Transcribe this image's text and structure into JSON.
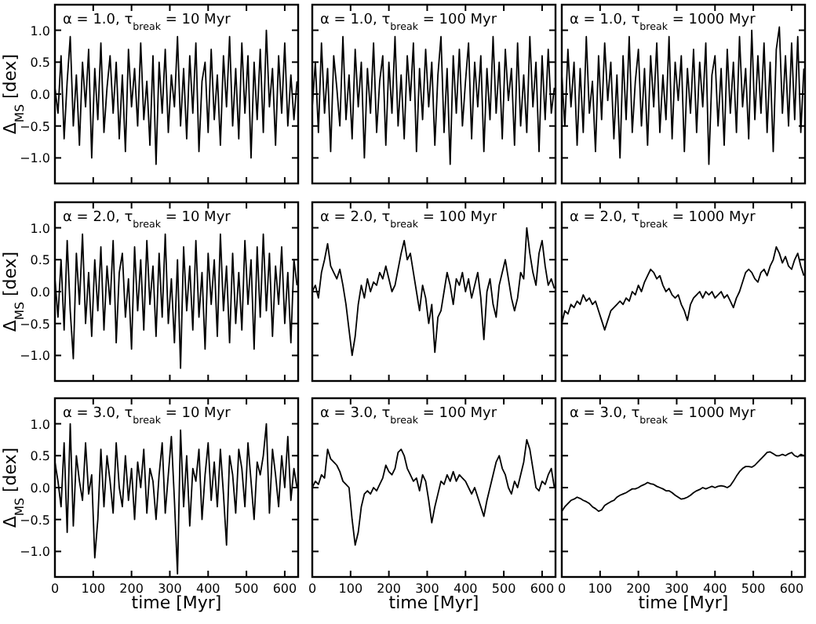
{
  "chart_data": [
    {
      "type": "line",
      "title": "α = 1.0,  τ$_{break}$ = 10 Myr",
      "ylabel": "Δ$_{MS}$  [dex]",
      "tick_labels": "y",
      "xlim": [
        0,
        635
      ],
      "ylim": [
        -1.4,
        1.4
      ],
      "xticks": [
        0,
        100,
        200,
        300,
        400,
        500,
        600
      ],
      "yticks": [
        {
          "value": -1,
          "label": "−1.0"
        },
        {
          "value": -0.5,
          "label": "−0.5"
        },
        {
          "value": 0,
          "label": "0.0"
        },
        {
          "value": 0.5,
          "label": "0.5"
        },
        {
          "value": 1,
          "label": "1.0"
        }
      ],
      "x": [
        0,
        8,
        16,
        24,
        32,
        40,
        48,
        56,
        64,
        72,
        80,
        88,
        96,
        104,
        112,
        120,
        128,
        136,
        144,
        152,
        160,
        168,
        176,
        184,
        192,
        200,
        208,
        216,
        224,
        232,
        240,
        248,
        256,
        264,
        272,
        280,
        288,
        296,
        304,
        312,
        320,
        328,
        336,
        344,
        352,
        360,
        368,
        376,
        384,
        392,
        400,
        408,
        416,
        424,
        432,
        440,
        448,
        456,
        464,
        472,
        480,
        488,
        496,
        504,
        512,
        520,
        528,
        536,
        544,
        552,
        560,
        568,
        576,
        584,
        592,
        600,
        608,
        616,
        624,
        632
      ],
      "series": [
        {
          "color": "#000000",
          "values": [
            0.1,
            -0.3,
            0.6,
            -0.7,
            0.2,
            0.9,
            -0.5,
            0.3,
            -0.8,
            0.5,
            -0.2,
            0.7,
            -1.0,
            0.4,
            -0.4,
            0.8,
            -0.6,
            0.1,
            0.6,
            -0.3,
            0.5,
            -0.7,
            0.3,
            -0.9,
            0.7,
            -0.2,
            0.4,
            -0.5,
            0.8,
            -0.4,
            0.2,
            -0.8,
            0.6,
            -1.1,
            0.5,
            -0.3,
            0.7,
            -0.6,
            0.3,
            -0.2,
            0.9,
            -0.5,
            0.4,
            -0.7,
            0.6,
            -0.3,
            0.8,
            -0.9,
            0.2,
            0.5,
            -0.6,
            0.7,
            -0.4,
            0.3,
            -0.8,
            0.6,
            -0.2,
            0.9,
            -0.5,
            0.4,
            -0.7,
            0.8,
            -0.3,
            0.6,
            -1.0,
            0.5,
            -0.4,
            0.7,
            -0.6,
            1.0,
            -0.2,
            0.4,
            -0.8,
            0.6,
            -0.3,
            0.8,
            -0.5,
            0.3,
            -0.4,
            0.2
          ]
        }
      ]
    },
    {
      "type": "line",
      "title": "α = 1.0,  τ$_{break}$ = 100 Myr",
      "tick_labels": false,
      "xlim": [
        0,
        635
      ],
      "ylim": [
        -1.4,
        1.4
      ],
      "xticks": [
        {
          "value": 0,
          "label": null
        },
        {
          "value": 100,
          "label": null
        },
        {
          "value": 200,
          "label": null
        },
        {
          "value": 300,
          "label": null
        },
        {
          "value": 400,
          "label": null
        },
        {
          "value": 500,
          "label": null
        },
        {
          "value": 600,
          "label": null
        }
      ],
      "yticks": [
        {
          "value": -1,
          "label": null
        },
        {
          "value": -0.5,
          "label": null
        },
        {
          "value": 0,
          "label": null
        },
        {
          "value": 0.5,
          "label": null
        },
        {
          "value": 1,
          "label": null
        }
      ],
      "x": [
        0,
        8,
        16,
        24,
        32,
        40,
        48,
        56,
        64,
        72,
        80,
        88,
        96,
        104,
        112,
        120,
        128,
        136,
        144,
        152,
        160,
        168,
        176,
        184,
        192,
        200,
        208,
        216,
        224,
        232,
        240,
        248,
        256,
        264,
        272,
        280,
        288,
        296,
        304,
        312,
        320,
        328,
        336,
        344,
        352,
        360,
        368,
        376,
        384,
        392,
        400,
        408,
        416,
        424,
        432,
        440,
        448,
        456,
        464,
        472,
        480,
        488,
        496,
        504,
        512,
        520,
        528,
        536,
        544,
        552,
        560,
        568,
        576,
        584,
        592,
        600,
        608,
        616,
        624,
        632
      ],
      "series": [
        {
          "color": "#000000",
          "values": [
            -0.2,
            0.5,
            -0.6,
            0.8,
            -0.3,
            0.4,
            -0.9,
            0.6,
            0.1,
            -0.5,
            0.9,
            -0.4,
            0.3,
            -0.7,
            0.7,
            -0.2,
            0.5,
            -1.0,
            0.4,
            -0.3,
            0.8,
            -0.6,
            0.2,
            0.6,
            -0.8,
            0.5,
            -0.3,
            0.9,
            -0.5,
            0.3,
            -0.7,
            0.6,
            -0.1,
            0.8,
            -0.9,
            0.4,
            -0.4,
            0.7,
            -0.2,
            0.5,
            -0.8,
            0.3,
            0.9,
            -0.6,
            0.4,
            -1.1,
            0.6,
            -0.3,
            0.7,
            -0.5,
            0.2,
            0.8,
            -0.7,
            0.5,
            -0.2,
            0.6,
            -0.9,
            0.4,
            -0.4,
            0.9,
            -0.3,
            0.5,
            -0.7,
            0.7,
            -0.1,
            0.4,
            -0.8,
            0.8,
            -0.5,
            0.3,
            -0.6,
            0.9,
            -0.2,
            0.5,
            -0.9,
            0.6,
            -0.4,
            0.7,
            -0.3,
            0.1
          ]
        }
      ]
    },
    {
      "type": "line",
      "title": "α = 1.0,  τ$_{break}$ = 1000 Myr",
      "tick_labels": false,
      "xlim": [
        0,
        635
      ],
      "ylim": [
        -1.4,
        1.4
      ],
      "xticks": [
        {
          "value": 0,
          "label": null
        },
        {
          "value": 100,
          "label": null
        },
        {
          "value": 200,
          "label": null
        },
        {
          "value": 300,
          "label": null
        },
        {
          "value": 400,
          "label": null
        },
        {
          "value": 500,
          "label": null
        },
        {
          "value": 600,
          "label": null
        }
      ],
      "yticks": [
        {
          "value": -1,
          "label": null
        },
        {
          "value": -0.5,
          "label": null
        },
        {
          "value": 0,
          "label": null
        },
        {
          "value": 0.5,
          "label": null
        },
        {
          "value": 1,
          "label": null
        }
      ],
      "x": [
        0,
        8,
        16,
        24,
        32,
        40,
        48,
        56,
        64,
        72,
        80,
        88,
        96,
        104,
        112,
        120,
        128,
        136,
        144,
        152,
        160,
        168,
        176,
        184,
        192,
        200,
        208,
        216,
        224,
        232,
        240,
        248,
        256,
        264,
        272,
        280,
        288,
        296,
        304,
        312,
        320,
        328,
        336,
        344,
        352,
        360,
        368,
        376,
        384,
        392,
        400,
        408,
        416,
        424,
        432,
        440,
        448,
        456,
        464,
        472,
        480,
        488,
        496,
        504,
        512,
        520,
        528,
        536,
        544,
        552,
        560,
        568,
        576,
        584,
        592,
        600,
        608,
        616,
        624,
        632
      ],
      "series": [
        {
          "color": "#000000",
          "values": [
            0.3,
            -0.5,
            0.7,
            -0.2,
            0.5,
            -0.8,
            0.4,
            -0.6,
            0.9,
            -0.3,
            0.2,
            -0.9,
            0.6,
            -0.4,
            0.8,
            -0.1,
            0.5,
            -0.7,
            0.3,
            -1.0,
            0.6,
            -0.4,
            0.9,
            -0.6,
            0.2,
            0.7,
            -0.5,
            0.4,
            -0.8,
            0.6,
            -0.2,
            0.8,
            -0.6,
            0.3,
            -0.4,
            0.9,
            -0.7,
            0.5,
            -0.1,
            0.6,
            -0.9,
            0.4,
            -0.3,
            0.7,
            -0.6,
            0.5,
            -0.2,
            0.8,
            -1.1,
            0.3,
            0.6,
            -0.5,
            0.4,
            -0.8,
            0.7,
            -0.3,
            0.5,
            -0.6,
            0.9,
            -0.2,
            0.4,
            -0.7,
            1.0,
            -0.4,
            0.6,
            -0.3,
            0.8,
            -0.6,
            0.5,
            -0.9,
            0.7,
            1.05,
            -0.3,
            0.6,
            -0.5,
            0.8,
            -0.4,
            0.9,
            -0.6,
            0.4
          ]
        }
      ]
    },
    {
      "type": "line",
      "title": "α = 2.0,  τ$_{break}$ = 10 Myr",
      "ylabel": "Δ$_{MS}$  [dex]",
      "tick_labels": "y",
      "xlim": [
        0,
        635
      ],
      "ylim": [
        -1.4,
        1.4
      ],
      "xticks": [
        0,
        100,
        200,
        300,
        400,
        500,
        600
      ],
      "yticks": [
        {
          "value": -1,
          "label": "−1.0"
        },
        {
          "value": -0.5,
          "label": "−0.5"
        },
        {
          "value": 0,
          "label": "0.0"
        },
        {
          "value": 0.5,
          "label": "0.5"
        },
        {
          "value": 1,
          "label": "1.0"
        }
      ],
      "x": [
        0,
        8,
        16,
        24,
        32,
        40,
        48,
        56,
        64,
        72,
        80,
        88,
        96,
        104,
        112,
        120,
        128,
        136,
        144,
        152,
        160,
        168,
        176,
        184,
        192,
        200,
        208,
        216,
        224,
        232,
        240,
        248,
        256,
        264,
        272,
        280,
        288,
        296,
        304,
        312,
        320,
        328,
        336,
        344,
        352,
        360,
        368,
        376,
        384,
        392,
        400,
        408,
        416,
        424,
        432,
        440,
        448,
        456,
        464,
        472,
        480,
        488,
        496,
        504,
        512,
        520,
        528,
        536,
        544,
        552,
        560,
        568,
        576,
        584,
        592,
        600,
        608,
        616,
        624,
        632
      ],
      "series": [
        {
          "color": "#000000",
          "values": [
            0.2,
            -0.4,
            0.5,
            -0.6,
            0.8,
            -0.3,
            -1.05,
            0.6,
            -0.2,
            0.9,
            -0.5,
            0.3,
            -0.7,
            0.5,
            -0.3,
            0.7,
            -0.6,
            0.4,
            -0.2,
            0.8,
            -0.8,
            0.3,
            0.6,
            -0.4,
            0.2,
            -0.9,
            0.7,
            -0.3,
            0.5,
            -0.6,
            0.8,
            -0.2,
            0.4,
            -0.7,
            0.6,
            -0.4,
            0.9,
            -0.5,
            0.2,
            -0.8,
            0.5,
            -1.2,
            0.7,
            -0.3,
            0.4,
            -0.6,
            0.8,
            -0.4,
            0.3,
            -0.9,
            0.6,
            -0.2,
            0.5,
            -0.7,
            0.9,
            -0.3,
            0.4,
            -0.8,
            0.6,
            -0.5,
            0.3,
            -0.6,
            0.8,
            -0.2,
            0.5,
            -0.9,
            0.7,
            -0.4,
            0.9,
            -0.3,
            0.6,
            -0.7,
            0.4,
            -0.2,
            0.7,
            -0.5,
            0.3,
            -0.8,
            0.5,
            0.1
          ]
        }
      ]
    },
    {
      "type": "line",
      "title": "α = 2.0,  τ$_{break}$ = 100 Myr",
      "tick_labels": false,
      "xlim": [
        0,
        635
      ],
      "ylim": [
        -1.4,
        1.4
      ],
      "xticks": [
        {
          "value": 0,
          "label": null
        },
        {
          "value": 100,
          "label": null
        },
        {
          "value": 200,
          "label": null
        },
        {
          "value": 300,
          "label": null
        },
        {
          "value": 400,
          "label": null
        },
        {
          "value": 500,
          "label": null
        },
        {
          "value": 600,
          "label": null
        }
      ],
      "yticks": [
        {
          "value": -1,
          "label": null
        },
        {
          "value": -0.5,
          "label": null
        },
        {
          "value": 0,
          "label": null
        },
        {
          "value": 0.5,
          "label": null
        },
        {
          "value": 1,
          "label": null
        }
      ],
      "x": [
        0,
        8,
        16,
        24,
        32,
        40,
        48,
        56,
        64,
        72,
        80,
        88,
        96,
        104,
        112,
        120,
        128,
        136,
        144,
        152,
        160,
        168,
        176,
        184,
        192,
        200,
        208,
        216,
        224,
        232,
        240,
        248,
        256,
        264,
        272,
        280,
        288,
        296,
        304,
        312,
        320,
        328,
        336,
        344,
        352,
        360,
        368,
        376,
        384,
        392,
        400,
        408,
        416,
        424,
        432,
        440,
        448,
        456,
        464,
        472,
        480,
        488,
        496,
        504,
        512,
        520,
        528,
        536,
        544,
        552,
        560,
        568,
        576,
        584,
        592,
        600,
        608,
        616,
        624,
        632
      ],
      "series": [
        {
          "color": "#000000",
          "values": [
            0.0,
            0.1,
            -0.1,
            0.3,
            0.5,
            0.75,
            0.4,
            0.3,
            0.2,
            0.35,
            0.1,
            -0.2,
            -0.6,
            -1.0,
            -0.7,
            -0.2,
            0.1,
            -0.1,
            0.2,
            0.0,
            0.15,
            0.1,
            0.3,
            0.2,
            0.4,
            0.2,
            0.0,
            0.1,
            0.35,
            0.6,
            0.8,
            0.5,
            0.6,
            0.3,
            0.0,
            -0.3,
            0.1,
            -0.1,
            -0.5,
            -0.2,
            -0.95,
            -0.4,
            -0.3,
            0.0,
            0.3,
            0.1,
            -0.2,
            0.2,
            0.1,
            0.3,
            0.0,
            0.2,
            -0.1,
            0.1,
            0.3,
            -0.1,
            -0.75,
            0.0,
            0.2,
            -0.2,
            -0.4,
            0.1,
            0.3,
            0.5,
            0.2,
            -0.1,
            -0.3,
            -0.1,
            0.3,
            0.2,
            1.0,
            0.6,
            0.3,
            0.1,
            0.6,
            0.8,
            0.4,
            0.1,
            0.2,
            0.05
          ]
        }
      ]
    },
    {
      "type": "line",
      "title": "α = 2.0,  τ$_{break}$ = 1000 Myr",
      "tick_labels": false,
      "xlim": [
        0,
        635
      ],
      "ylim": [
        -1.4,
        1.4
      ],
      "xticks": [
        {
          "value": 0,
          "label": null
        },
        {
          "value": 100,
          "label": null
        },
        {
          "value": 200,
          "label": null
        },
        {
          "value": 300,
          "label": null
        },
        {
          "value": 400,
          "label": null
        },
        {
          "value": 500,
          "label": null
        },
        {
          "value": 600,
          "label": null
        }
      ],
      "yticks": [
        {
          "value": -1,
          "label": null
        },
        {
          "value": -0.5,
          "label": null
        },
        {
          "value": 0,
          "label": null
        },
        {
          "value": 0.5,
          "label": null
        },
        {
          "value": 1,
          "label": null
        }
      ],
      "x": [
        0,
        8,
        16,
        24,
        32,
        40,
        48,
        56,
        64,
        72,
        80,
        88,
        96,
        104,
        112,
        120,
        128,
        136,
        144,
        152,
        160,
        168,
        176,
        184,
        192,
        200,
        208,
        216,
        224,
        232,
        240,
        248,
        256,
        264,
        272,
        280,
        288,
        296,
        304,
        312,
        320,
        328,
        336,
        344,
        352,
        360,
        368,
        376,
        384,
        392,
        400,
        408,
        416,
        424,
        432,
        440,
        448,
        456,
        464,
        472,
        480,
        488,
        496,
        504,
        512,
        520,
        528,
        536,
        544,
        552,
        560,
        568,
        576,
        584,
        592,
        600,
        608,
        616,
        624,
        632
      ],
      "series": [
        {
          "color": "#000000",
          "values": [
            -0.5,
            -0.3,
            -0.35,
            -0.2,
            -0.25,
            -0.15,
            -0.2,
            -0.05,
            -0.15,
            -0.1,
            -0.2,
            -0.15,
            -0.3,
            -0.45,
            -0.6,
            -0.45,
            -0.3,
            -0.25,
            -0.2,
            -0.15,
            -0.2,
            -0.1,
            -0.15,
            0.0,
            -0.05,
            0.1,
            0.0,
            0.15,
            0.25,
            0.35,
            0.3,
            0.2,
            0.25,
            0.1,
            0.0,
            0.05,
            -0.05,
            -0.1,
            -0.05,
            -0.2,
            -0.3,
            -0.45,
            -0.2,
            -0.1,
            -0.05,
            0.0,
            -0.1,
            0.0,
            -0.05,
            0.0,
            -0.1,
            -0.05,
            0.0,
            -0.1,
            -0.05,
            -0.15,
            -0.25,
            -0.1,
            0.0,
            0.15,
            0.3,
            0.35,
            0.3,
            0.2,
            0.15,
            0.3,
            0.35,
            0.25,
            0.4,
            0.5,
            0.7,
            0.6,
            0.45,
            0.55,
            0.4,
            0.35,
            0.5,
            0.6,
            0.4,
            0.25
          ]
        }
      ]
    },
    {
      "type": "line",
      "title": "α = 3.0,  τ$_{break}$ = 10 Myr",
      "ylabel": "Δ$_{MS}$  [dex]",
      "xlabel": "time  [Myr]",
      "xlim": [
        0,
        635
      ],
      "ylim": [
        -1.4,
        1.4
      ],
      "xticks": [
        0,
        100,
        200,
        300,
        400,
        500,
        600
      ],
      "yticks": [
        {
          "value": -1,
          "label": "−1.0"
        },
        {
          "value": -0.5,
          "label": "−0.5"
        },
        {
          "value": 0,
          "label": "0.0"
        },
        {
          "value": 0.5,
          "label": "0.5"
        },
        {
          "value": 1,
          "label": "1.0"
        }
      ],
      "x": [
        0,
        8,
        16,
        24,
        32,
        40,
        48,
        56,
        64,
        72,
        80,
        88,
        96,
        104,
        112,
        120,
        128,
        136,
        144,
        152,
        160,
        168,
        176,
        184,
        192,
        200,
        208,
        216,
        224,
        232,
        240,
        248,
        256,
        264,
        272,
        280,
        288,
        296,
        304,
        312,
        320,
        328,
        336,
        344,
        352,
        360,
        368,
        376,
        384,
        392,
        400,
        408,
        416,
        424,
        432,
        440,
        448,
        456,
        464,
        472,
        480,
        488,
        496,
        504,
        512,
        520,
        528,
        536,
        544,
        552,
        560,
        568,
        576,
        584,
        592,
        600,
        608,
        616,
        624,
        632
      ],
      "series": [
        {
          "color": "#000000",
          "values": [
            0.4,
            0.1,
            -0.3,
            0.7,
            -0.7,
            1.0,
            -0.6,
            0.5,
            0.1,
            -0.2,
            0.7,
            -0.1,
            0.2,
            -1.1,
            -0.5,
            0.6,
            -0.3,
            0.5,
            0.1,
            -0.4,
            0.7,
            0.0,
            -0.3,
            0.5,
            -0.2,
            0.3,
            -0.5,
            0.4,
            0.0,
            0.6,
            -0.4,
            0.3,
            0.1,
            -0.5,
            0.2,
            0.7,
            -0.4,
            0.2,
            0.8,
            -0.2,
            -1.35,
            0.9,
            -0.3,
            0.5,
            -0.6,
            0.3,
            0.1,
            0.6,
            -0.5,
            0.2,
            0.7,
            -0.2,
            0.4,
            -0.3,
            0.6,
            -0.1,
            -0.9,
            0.5,
            0.2,
            -0.4,
            0.6,
            0.3,
            -0.3,
            0.7,
            0.1,
            -0.5,
            0.4,
            0.2,
            0.5,
            1.0,
            -0.4,
            0.6,
            0.2,
            -0.3,
            0.5,
            0.0,
            0.8,
            -0.2,
            0.3,
            0.0
          ]
        }
      ]
    },
    {
      "type": "line",
      "title": "α = 3.0,  τ$_{break}$ = 100 Myr",
      "xlabel": "time  [Myr]",
      "tick_labels": "x",
      "xlim": [
        0,
        635
      ],
      "ylim": [
        -1.4,
        1.4
      ],
      "xticks": [
        0,
        100,
        200,
        300,
        400,
        500,
        600
      ],
      "yticks": [
        {
          "value": -1,
          "label": null
        },
        {
          "value": -0.5,
          "label": null
        },
        {
          "value": 0,
          "label": null
        },
        {
          "value": 0.5,
          "label": null
        },
        {
          "value": 1,
          "label": null
        }
      ],
      "x": [
        0,
        8,
        16,
        24,
        32,
        40,
        48,
        56,
        64,
        72,
        80,
        88,
        96,
        104,
        112,
        120,
        128,
        136,
        144,
        152,
        160,
        168,
        176,
        184,
        192,
        200,
        208,
        216,
        224,
        232,
        240,
        248,
        256,
        264,
        272,
        280,
        288,
        296,
        304,
        312,
        320,
        328,
        336,
        344,
        352,
        360,
        368,
        376,
        384,
        392,
        400,
        408,
        416,
        424,
        432,
        440,
        448,
        456,
        464,
        472,
        480,
        488,
        496,
        504,
        512,
        520,
        528,
        536,
        544,
        552,
        560,
        568,
        576,
        584,
        592,
        600,
        608,
        616,
        624,
        632
      ],
      "series": [
        {
          "color": "#000000",
          "values": [
            0.0,
            0.1,
            0.05,
            0.2,
            0.15,
            0.6,
            0.45,
            0.4,
            0.35,
            0.25,
            0.1,
            0.05,
            0.0,
            -0.5,
            -0.9,
            -0.7,
            -0.3,
            -0.1,
            -0.05,
            -0.1,
            0.0,
            -0.05,
            0.05,
            0.15,
            0.35,
            0.25,
            0.2,
            0.3,
            0.55,
            0.6,
            0.5,
            0.3,
            0.2,
            0.1,
            0.15,
            -0.05,
            0.2,
            0.1,
            -0.2,
            -0.55,
            -0.3,
            -0.1,
            0.1,
            0.05,
            0.2,
            0.1,
            0.25,
            0.1,
            0.2,
            0.15,
            0.1,
            0.0,
            -0.1,
            0.0,
            -0.15,
            -0.3,
            -0.45,
            -0.2,
            0.0,
            0.2,
            0.4,
            0.5,
            0.3,
            0.2,
            0.0,
            -0.1,
            0.1,
            0.0,
            0.2,
            0.4,
            0.75,
            0.6,
            0.3,
            0.0,
            -0.05,
            0.1,
            0.05,
            0.2,
            0.3,
            0.0
          ]
        }
      ]
    },
    {
      "type": "line",
      "title": "α = 3.0,  τ$_{break}$ = 1000 Myr",
      "xlabel": "time  [Myr]",
      "tick_labels": "x",
      "xlim": [
        0,
        635
      ],
      "ylim": [
        -1.4,
        1.4
      ],
      "xticks": [
        0,
        100,
        200,
        300,
        400,
        500,
        600
      ],
      "yticks": [
        {
          "value": -1,
          "label": null
        },
        {
          "value": -0.5,
          "label": null
        },
        {
          "value": 0,
          "label": null
        },
        {
          "value": 0.5,
          "label": null
        },
        {
          "value": 1,
          "label": null
        }
      ],
      "x": [
        0,
        8,
        16,
        24,
        32,
        40,
        48,
        56,
        64,
        72,
        80,
        88,
        96,
        104,
        112,
        120,
        128,
        136,
        144,
        152,
        160,
        168,
        176,
        184,
        192,
        200,
        208,
        216,
        224,
        232,
        240,
        248,
        256,
        264,
        272,
        280,
        288,
        296,
        304,
        312,
        320,
        328,
        336,
        344,
        352,
        360,
        368,
        376,
        384,
        392,
        400,
        408,
        416,
        424,
        432,
        440,
        448,
        456,
        464,
        472,
        480,
        488,
        496,
        504,
        512,
        520,
        528,
        536,
        544,
        552,
        560,
        568,
        576,
        584,
        592,
        600,
        608,
        616,
        624,
        632
      ],
      "series": [
        {
          "color": "#000000",
          "values": [
            -0.37,
            -0.3,
            -0.25,
            -0.2,
            -0.18,
            -0.15,
            -0.17,
            -0.2,
            -0.22,
            -0.25,
            -0.3,
            -0.33,
            -0.37,
            -0.35,
            -0.28,
            -0.25,
            -0.22,
            -0.2,
            -0.15,
            -0.12,
            -0.1,
            -0.08,
            -0.05,
            -0.02,
            -0.02,
            0.0,
            0.03,
            0.05,
            0.08,
            0.06,
            0.05,
            0.02,
            0.0,
            -0.02,
            -0.05,
            -0.05,
            -0.08,
            -0.12,
            -0.15,
            -0.18,
            -0.17,
            -0.15,
            -0.12,
            -0.08,
            -0.05,
            -0.03,
            0.0,
            -0.02,
            0.0,
            0.02,
            0.0,
            0.02,
            0.03,
            0.02,
            0.0,
            0.03,
            0.1,
            0.18,
            0.25,
            0.3,
            0.33,
            0.33,
            0.32,
            0.35,
            0.4,
            0.45,
            0.5,
            0.55,
            0.56,
            0.53,
            0.5,
            0.5,
            0.52,
            0.5,
            0.53,
            0.55,
            0.5,
            0.48,
            0.52,
            0.5
          ]
        }
      ]
    }
  ]
}
